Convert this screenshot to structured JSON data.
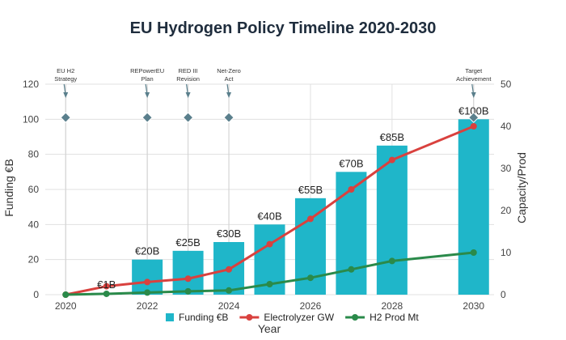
{
  "chart_data": {
    "type": "bar",
    "title": "EU Hydrogen Policy Timeline 2020-2030",
    "xlabel": "Year",
    "ylabel_left": "Funding €B",
    "ylabel_right": "Capacity/Prod",
    "xlim": [
      2019.5,
      2030.5
    ],
    "x_ticks": [
      2020,
      2022,
      2024,
      2026,
      2028,
      2030
    ],
    "ylim_left": [
      0,
      120
    ],
    "y_ticks_left": [
      0,
      20,
      40,
      60,
      80,
      100,
      120
    ],
    "ylim_right": [
      0,
      50
    ],
    "y_ticks_right": [
      0,
      10,
      20,
      30,
      40,
      50
    ],
    "grid": true,
    "legend_position": "bottom",
    "series": [
      {
        "name": "Funding €B",
        "kind": "bar",
        "axis": "left",
        "color": "#1fb6c9",
        "x": [
          2021,
          2022,
          2023,
          2024,
          2025,
          2026,
          2027,
          2028,
          2030
        ],
        "values": [
          1,
          20,
          25,
          30,
          40,
          55,
          70,
          85,
          100
        ],
        "labels": [
          "€1B",
          "€20B",
          "€25B",
          "€30B",
          "€40B",
          "€55B",
          "€70B",
          "€85B",
          "€100B"
        ]
      },
      {
        "name": "Electrolyzer GW",
        "kind": "line",
        "axis": "right",
        "color": "#d9413e",
        "x": [
          2020,
          2021,
          2022,
          2023,
          2024,
          2025,
          2026,
          2027,
          2028,
          2030
        ],
        "values": [
          0,
          2,
          3,
          3.8,
          6,
          12,
          18,
          25,
          32,
          40
        ]
      },
      {
        "name": "H2 Prod Mt",
        "kind": "line",
        "axis": "right",
        "color": "#2a8a4a",
        "x": [
          2020,
          2021,
          2022,
          2023,
          2024,
          2025,
          2026,
          2027,
          2028,
          2030
        ],
        "values": [
          0,
          0.2,
          0.5,
          0.8,
          1,
          2.5,
          4,
          6,
          8,
          10
        ]
      }
    ],
    "annotations": [
      {
        "x": 2020,
        "lines": [
          "EU H2",
          "Strategy"
        ]
      },
      {
        "x": 2022,
        "lines": [
          "REPowerEU",
          "Plan"
        ]
      },
      {
        "x": 2023,
        "lines": [
          "RED III",
          "Revision"
        ]
      },
      {
        "x": 2024,
        "lines": [
          "Net-Zero",
          "Act"
        ]
      },
      {
        "x": 2030,
        "lines": [
          "Target",
          "Achievement"
        ]
      }
    ],
    "milestone_marker_value_left": 101,
    "colors": {
      "milestone": "#5a7f8c",
      "grid": "#e0e0e0",
      "axis": "#888888",
      "title": "#1f2d3d"
    }
  }
}
